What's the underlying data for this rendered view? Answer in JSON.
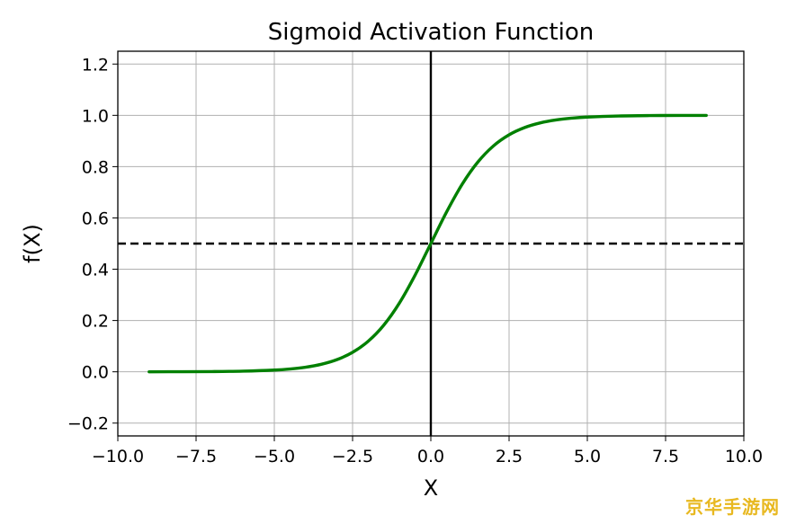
{
  "chart_data": {
    "type": "line",
    "title": "Sigmoid Activation Function",
    "xlabel": "X",
    "ylabel": "f(X)",
    "xlim": [
      -10,
      10
    ],
    "ylim": [
      -0.25,
      1.25
    ],
    "xticks": [
      -10,
      -7.5,
      -5,
      -2.5,
      0,
      2.5,
      5,
      7.5,
      10
    ],
    "xtick_labels": [
      "−10.0",
      "−7.5",
      "−5.0",
      "−2.5",
      "0.0",
      "2.5",
      "5.0",
      "7.5",
      "10.0"
    ],
    "yticks": [
      -0.2,
      0,
      0.2,
      0.4,
      0.6,
      0.8,
      1.0,
      1.2
    ],
    "ytick_labels": [
      "−0.2",
      "0.0",
      "0.2",
      "0.4",
      "0.6",
      "0.8",
      "1.0",
      "1.2"
    ],
    "grid": true,
    "series": [
      {
        "color": "#008000",
        "x": [
          -9,
          -8,
          -7,
          -6,
          -5,
          -4.5,
          -4,
          -3.5,
          -3,
          -2.5,
          -2,
          -1.5,
          -1,
          -0.5,
          0,
          0.5,
          1,
          1.5,
          2,
          2.5,
          3,
          3.5,
          4,
          4.5,
          5,
          6,
          7,
          8,
          8.8
        ],
        "y": [
          0.0001,
          0.0003,
          0.0009,
          0.0025,
          0.0067,
          0.011,
          0.018,
          0.0293,
          0.0474,
          0.0759,
          0.1192,
          0.1824,
          0.2689,
          0.3775,
          0.5,
          0.6225,
          0.7311,
          0.8176,
          0.8808,
          0.9241,
          0.9526,
          0.9707,
          0.982,
          0.989,
          0.9933,
          0.9975,
          0.9991,
          0.9997,
          0.9998
        ]
      }
    ],
    "reference_lines": [
      {
        "orientation": "vertical",
        "value": 0,
        "style": "solid",
        "color": "#000000"
      },
      {
        "orientation": "horizontal",
        "value": 0.5,
        "style": "dashed",
        "color": "#000000"
      }
    ]
  },
  "watermark": "京华手游网"
}
